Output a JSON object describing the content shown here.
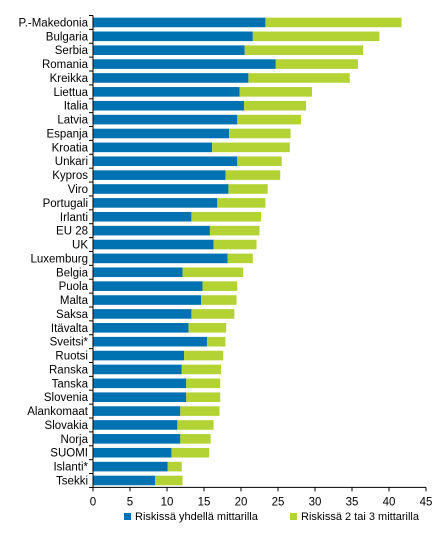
{
  "chart_data": {
    "type": "bar",
    "orientation": "horizontal",
    "stacked": true,
    "categories": [
      "P.-Makedonia",
      "Bulgaria",
      "Serbia",
      "Romania",
      "Kreikka",
      "Liettua",
      "Italia",
      "Latvia",
      "Espanja",
      "Kroatia",
      "Unkari",
      "Kypros",
      "Viro",
      "Portugali",
      "Irlanti",
      "EU 28",
      "UK",
      "Luxemburg",
      "Belgia",
      "Puola",
      "Malta",
      "Saksa",
      "Itävalta",
      "Sveitsi*",
      "Ruotsi",
      "Ranska",
      "Tanska",
      "Slovenia",
      "Alankomaat",
      "Slovakia",
      "Norja",
      "SUOMI",
      "Islanti*",
      "Tsekki"
    ],
    "series": [
      {
        "name": "Riskissä yhdellä mittarilla",
        "color": "#0072b2",
        "values": [
          23.3,
          21.6,
          20.5,
          24.7,
          21.0,
          19.8,
          20.4,
          19.5,
          18.4,
          16.1,
          19.5,
          17.9,
          18.3,
          16.8,
          13.3,
          15.8,
          16.3,
          18.2,
          12.1,
          14.8,
          14.6,
          13.3,
          12.9,
          15.4,
          12.3,
          12.0,
          12.6,
          12.6,
          11.8,
          11.4,
          11.8,
          10.6,
          10.1,
          8.4
        ]
      },
      {
        "name": "Riskissä 2 tai 3 mittarilla",
        "color": "#b3d334",
        "values": [
          18.4,
          17.1,
          16.0,
          11.1,
          13.7,
          9.8,
          8.4,
          8.6,
          8.3,
          10.5,
          6.0,
          7.4,
          5.3,
          6.5,
          9.4,
          6.7,
          5.8,
          3.4,
          8.2,
          4.7,
          4.8,
          5.8,
          5.1,
          2.5,
          5.3,
          5.3,
          4.6,
          4.6,
          5.3,
          4.9,
          4.1,
          5.1,
          1.9,
          3.7
        ]
      }
    ],
    "xlim": [
      0,
      45
    ],
    "xticks": [
      0,
      5,
      10,
      15,
      20,
      25,
      30,
      35,
      40,
      45
    ],
    "grid": false,
    "legend_position": "bottom",
    "title": "",
    "xlabel": "",
    "ylabel": ""
  }
}
